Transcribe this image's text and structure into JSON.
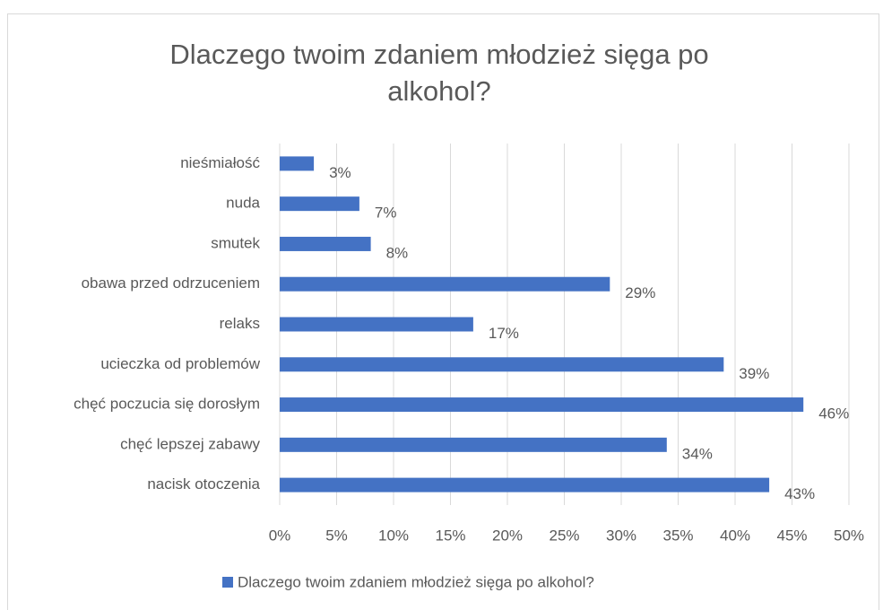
{
  "chart_data": {
    "type": "bar",
    "orientation": "horizontal",
    "title": "Dlaczego twoim zdaniem młodzież sięga po alkohol?",
    "categories": [
      "nieśmiałość",
      "nuda",
      "smutek",
      "obawa przed odrzuceniem",
      "relaks",
      "ucieczka od problemów",
      "chęć poczucia się dorosłym",
      "chęć lepszej zabawy",
      "nacisk otoczenia"
    ],
    "series": [
      {
        "name": "Dlaczego twoim zdaniem młodzież sięga po alkohol?",
        "color": "#4472c4",
        "values": [
          3,
          7,
          8,
          29,
          17,
          39,
          46,
          34,
          43
        ],
        "value_labels": [
          "3%",
          "7%",
          "8%",
          "29%",
          "17%",
          "39%",
          "46%",
          "34%",
          "43%"
        ]
      }
    ],
    "xlim": [
      0,
      50
    ],
    "xticks": [
      {
        "value": 0,
        "label": "0%"
      },
      {
        "value": 5,
        "label": "5%"
      },
      {
        "value": 10,
        "label": "10%"
      },
      {
        "value": 15,
        "label": "15%"
      },
      {
        "value": 20,
        "label": "20%"
      },
      {
        "value": 25,
        "label": "25%"
      },
      {
        "value": 30,
        "label": "30%"
      },
      {
        "value": 35,
        "label": "35%"
      },
      {
        "value": 40,
        "label": "40%"
      },
      {
        "value": 45,
        "label": "45%"
      },
      {
        "value": 50,
        "label": "50%"
      }
    ],
    "grid": true,
    "legend": "bottom"
  }
}
